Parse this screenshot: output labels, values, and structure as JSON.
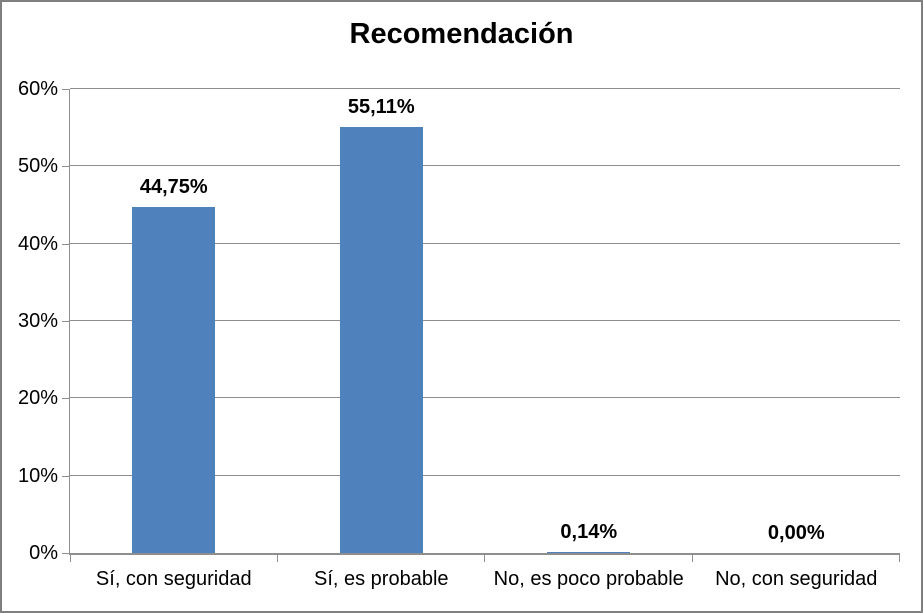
{
  "chart_data": {
    "type": "bar",
    "title": "Recomendación",
    "categories": [
      "Sí, con seguridad",
      "Sí, es probable",
      "No, es poco probable",
      "No, con seguridad"
    ],
    "values": [
      44.75,
      55.11,
      0.14,
      0.0
    ],
    "value_labels": [
      "44,75%",
      "55,11%",
      "0,14%",
      "0,00%"
    ],
    "xlabel": "",
    "ylabel": "",
    "ylim": [
      0,
      60
    ],
    "y_tick_step": 10,
    "y_tick_labels": [
      "0%",
      "10%",
      "20%",
      "30%",
      "40%",
      "50%",
      "60%"
    ],
    "grid": true,
    "legend": "none",
    "colors": {
      "bar": "#4F81BD",
      "gridline": "#8E8E8E",
      "axis": "#8E8E8E",
      "text": "#000000",
      "chart_border": "#7F7F7F",
      "background": "#FFFFFF"
    }
  }
}
